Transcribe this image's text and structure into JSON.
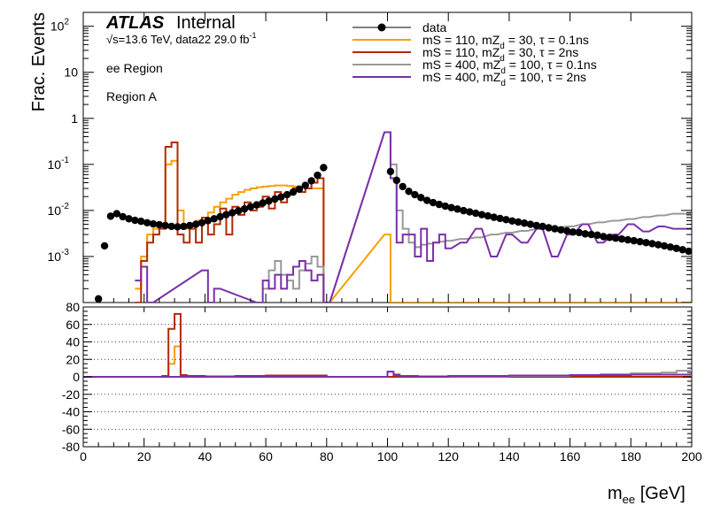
{
  "header": {
    "experiment": "ATLAS",
    "status": "Internal",
    "sqrt_s_symbol": "√s",
    "energy_lumi": "=13.6 TeV, data22 29.0 fb",
    "lumi_exp": "-1",
    "region_1": "ee Region",
    "region_2": "Region A"
  },
  "axes": {
    "ylabel_main": "Frac. Events",
    "xlabel_main": "m",
    "xlabel_sub": "ee",
    "xlabel_unit": " [GeV]"
  },
  "legend": [
    {
      "kind": "marker",
      "color": "#000000",
      "parts": [
        "data"
      ]
    },
    {
      "kind": "line",
      "color": "#f5a00a",
      "parts": [
        "mS = 110, mZ",
        "d",
        " = 30, τ = 0.1ns"
      ]
    },
    {
      "kind": "line",
      "color": "#b22a00",
      "parts": [
        "mS = 110, mZ",
        "d",
        " = 30, τ = 2ns"
      ]
    },
    {
      "kind": "line",
      "color": "#999999",
      "parts": [
        "mS = 400, mZ",
        "d",
        " = 100, τ = 0.1ns"
      ]
    },
    {
      "kind": "line",
      "color": "#7b2fa8",
      "parts": [
        "mS = 400, mZ",
        "d",
        " = 100, τ = 2ns"
      ]
    }
  ],
  "chart_data": [
    {
      "type": "line",
      "panel": "main",
      "title": "",
      "xlabel": "m_ee [GeV]",
      "ylabel": "Frac. Events",
      "yscale": "log",
      "xlim": [
        0,
        200
      ],
      "ylim": [
        0.0001,
        200
      ],
      "x_ticks": [
        0,
        20,
        40,
        60,
        80,
        100,
        120,
        140,
        160,
        180,
        200
      ],
      "y_tick_labels": [
        {
          "v": 100,
          "m": "10",
          "e": "2"
        },
        {
          "v": 10,
          "m": "10",
          "e": ""
        },
        {
          "v": 1,
          "m": "1",
          "e": ""
        },
        {
          "v": 0.1,
          "m": "10",
          "e": "-1"
        },
        {
          "v": 0.01,
          "m": "10",
          "e": "-2"
        },
        {
          "v": 0.001,
          "m": "10",
          "e": "-3"
        }
      ],
      "series": [
        {
          "name": "data",
          "style": "marker",
          "color": "#000000",
          "x": [
            5,
            7,
            9,
            11,
            13,
            15,
            17,
            19,
            21,
            23,
            25,
            27,
            29,
            31,
            33,
            35,
            37,
            39,
            41,
            43,
            45,
            47,
            49,
            51,
            53,
            55,
            57,
            59,
            61,
            63,
            65,
            67,
            69,
            71,
            73,
            75,
            77,
            79,
            101,
            103,
            105,
            107,
            109,
            111,
            113,
            115,
            117,
            119,
            121,
            123,
            125,
            127,
            129,
            131,
            133,
            135,
            137,
            139,
            141,
            143,
            145,
            147,
            149,
            151,
            153,
            155,
            157,
            159,
            161,
            163,
            165,
            167,
            169,
            171,
            173,
            175,
            177,
            179,
            181,
            183,
            185,
            187,
            189,
            191,
            193,
            195,
            197,
            199
          ],
          "y": [
            0.00012,
            0.0017,
            0.0075,
            0.0085,
            0.0073,
            0.0066,
            0.0061,
            0.0058,
            0.0054,
            0.0051,
            0.0049,
            0.0047,
            0.0045,
            0.0044,
            0.0045,
            0.0047,
            0.005,
            0.0054,
            0.006,
            0.0066,
            0.0073,
            0.0081,
            0.0089,
            0.0098,
            0.0108,
            0.012,
            0.0132,
            0.0145,
            0.016,
            0.0177,
            0.0196,
            0.022,
            0.025,
            0.029,
            0.035,
            0.044,
            0.058,
            0.085,
            0.07,
            0.045,
            0.033,
            0.026,
            0.022,
            0.019,
            0.0165,
            0.0148,
            0.0135,
            0.0124,
            0.0115,
            0.0107,
            0.0099,
            0.0093,
            0.0087,
            0.0081,
            0.0076,
            0.0071,
            0.0067,
            0.0063,
            0.0059,
            0.0056,
            0.0053,
            0.005,
            0.0047,
            0.0045,
            0.0042,
            0.004,
            0.0038,
            0.0036,
            0.0034,
            0.0033,
            0.0031,
            0.003,
            0.0029,
            0.0027,
            0.0026,
            0.0025,
            0.0024,
            0.0023,
            0.0022,
            0.0021,
            0.002,
            0.0019,
            0.0018,
            0.0017,
            0.0016,
            0.0015,
            0.0014,
            0.0013
          ]
        },
        {
          "name": "mS = 110, mZd = 30, τ = 0.1ns",
          "style": "step",
          "color": "#f5a00a",
          "x": [
            18,
            20,
            22,
            24,
            26,
            28,
            30,
            32,
            34,
            36,
            38,
            40,
            42,
            44,
            46,
            48,
            50,
            52,
            54,
            56,
            58,
            60,
            62,
            64,
            66,
            68,
            70,
            72,
            74,
            76,
            78,
            80,
            100,
            102,
            104,
            106,
            108,
            110,
            112,
            114,
            116,
            118,
            120,
            130,
            140,
            150,
            160,
            170,
            180,
            190,
            200
          ],
          "y": [
            0.0002,
            0.001,
            0.003,
            0.004,
            0.005,
            0.1,
            0.12,
            0.01,
            0.004,
            0.005,
            0.006,
            0.007,
            0.009,
            0.012,
            0.015,
            0.018,
            0.022,
            0.025,
            0.028,
            0.03,
            0.032,
            0.033,
            0.034,
            0.035,
            0.035,
            0.034,
            0.033,
            0.032,
            0.03,
            0.03,
            0.03,
            0.0001,
            0.003,
            0.0001,
            0.0001,
            0.0001,
            0.0001,
            0.0001,
            0.0001,
            0.0001,
            0.0001,
            0.0001,
            0.0001,
            0.0001,
            0.0001,
            0.0001,
            0.0001,
            0.0001,
            0.0001,
            0.0001,
            0.0001
          ]
        },
        {
          "name": "mS = 110, mZd = 30, τ = 2ns",
          "style": "step",
          "color": "#b22a00",
          "x": [
            18,
            20,
            22,
            24,
            26,
            28,
            30,
            32,
            34,
            36,
            38,
            40,
            42,
            44,
            46,
            48,
            50,
            52,
            54,
            56,
            58,
            60,
            62,
            64,
            66,
            68,
            70,
            72,
            74,
            76,
            78,
            80
          ],
          "y": [
            0.0001,
            0.0008,
            0.002,
            0.003,
            0.004,
            0.24,
            0.3,
            0.003,
            0.002,
            0.004,
            0.002,
            0.007,
            0.003,
            0.005,
            0.011,
            0.003,
            0.012,
            0.008,
            0.015,
            0.01,
            0.012,
            0.02,
            0.011,
            0.025,
            0.015,
            0.022,
            0.03,
            0.025,
            0.03,
            0.04,
            0.05,
            0.0001
          ]
        },
        {
          "name": "mS = 400, mZd = 100, τ = 0.1ns",
          "style": "step",
          "color": "#999999",
          "x": [
            60,
            62,
            64,
            66,
            68,
            70,
            72,
            74,
            76,
            78,
            80,
            100,
            102,
            104,
            106,
            108,
            110,
            112,
            114,
            116,
            118,
            120,
            125,
            130,
            135,
            140,
            145,
            150,
            155,
            160,
            165,
            170,
            175,
            180,
            185,
            190,
            195,
            200
          ],
          "y": [
            0.0002,
            0.0005,
            0.0008,
            0.0004,
            0.0003,
            0.0002,
            0.0005,
            0.0007,
            0.001,
            0.0006,
            0.0001,
            0.5,
            0.1,
            0.01,
            0.004,
            0.002,
            0.0016,
            0.0018,
            0.0019,
            0.002,
            0.0021,
            0.0022,
            0.0024,
            0.0026,
            0.003,
            0.0033,
            0.0036,
            0.004,
            0.0042,
            0.0045,
            0.005,
            0.0055,
            0.006,
            0.0065,
            0.0072,
            0.0078,
            0.0085,
            0.0085
          ]
        },
        {
          "name": "mS = 400, mZd = 100, τ = 2ns",
          "style": "step",
          "color": "#7b2fa8",
          "x": [
            18,
            20,
            22,
            40,
            42,
            44,
            58,
            60,
            62,
            64,
            66,
            68,
            70,
            72,
            74,
            76,
            78,
            80,
            100,
            102,
            104,
            106,
            108,
            110,
            112,
            114,
            116,
            118,
            120,
            125,
            130,
            135,
            140,
            145,
            150,
            155,
            160,
            165,
            170,
            175,
            180,
            185,
            190,
            195,
            200
          ],
          "y": [
            0.0003,
            0.0006,
            0.0001,
            0.0005,
            0.0001,
            0.0002,
            0.0001,
            0.0003,
            0.0002,
            0.0004,
            0.0002,
            0.0004,
            0.0006,
            0.0008,
            0.0005,
            0.0003,
            0.0004,
            0.0001,
            0.5,
            0.05,
            0.002,
            0.003,
            0.003,
            0.001,
            0.004,
            0.0008,
            0.002,
            0.003,
            0.0015,
            0.002,
            0.004,
            0.001,
            0.003,
            0.002,
            0.004,
            0.001,
            0.003,
            0.005,
            0.002,
            0.003,
            0.005,
            0.0035,
            0.0045,
            0.004,
            0.004
          ]
        }
      ]
    },
    {
      "type": "line",
      "panel": "ratio",
      "xlabel": "m_ee [GeV]",
      "ylabel": "",
      "xlim": [
        0,
        200
      ],
      "ylim": [
        -80,
        80
      ],
      "y_ticks": [
        -80,
        -60,
        -40,
        -20,
        0,
        20,
        40,
        60,
        80
      ],
      "grid": "horizontal dotted",
      "series": [
        {
          "name": "mS = 110, mZd = 30, τ = 0.1ns",
          "style": "step",
          "color": "#f5a00a",
          "x": [
            0,
            20,
            26,
            28,
            30,
            32,
            34,
            40,
            50,
            60,
            70,
            80,
            100,
            200
          ],
          "y": [
            0,
            0,
            0.5,
            15,
            35,
            1,
            0.5,
            0.5,
            1,
            1,
            1,
            0,
            0,
            0
          ]
        },
        {
          "name": "mS = 110, mZd = 30, τ = 2ns",
          "style": "step",
          "color": "#b22a00",
          "x": [
            0,
            20,
            26,
            28,
            30,
            32,
            34,
            40,
            50,
            60,
            70,
            80,
            100,
            200
          ],
          "y": [
            0,
            0,
            1,
            55,
            72,
            2,
            1,
            0.5,
            1,
            1.5,
            1.5,
            0,
            0,
            0
          ]
        },
        {
          "name": "mS = 400, mZd = 100, τ = 0.1ns",
          "style": "step",
          "color": "#999999",
          "x": [
            0,
            100,
            102,
            104,
            110,
            120,
            140,
            160,
            170,
            180,
            190,
            195,
            200
          ],
          "y": [
            0,
            6,
            3,
            1,
            0.5,
            0.5,
            1,
            2,
            3,
            4,
            5,
            7,
            7
          ]
        },
        {
          "name": "mS = 400, mZd = 100, τ = 2ns",
          "style": "step",
          "color": "#7b2fa8",
          "x": [
            0,
            100,
            102,
            104,
            110,
            120,
            140,
            160,
            180,
            200
          ],
          "y": [
            0,
            6,
            2,
            1,
            0.5,
            1,
            1.5,
            2,
            2.5,
            2.5
          ]
        }
      ]
    }
  ]
}
